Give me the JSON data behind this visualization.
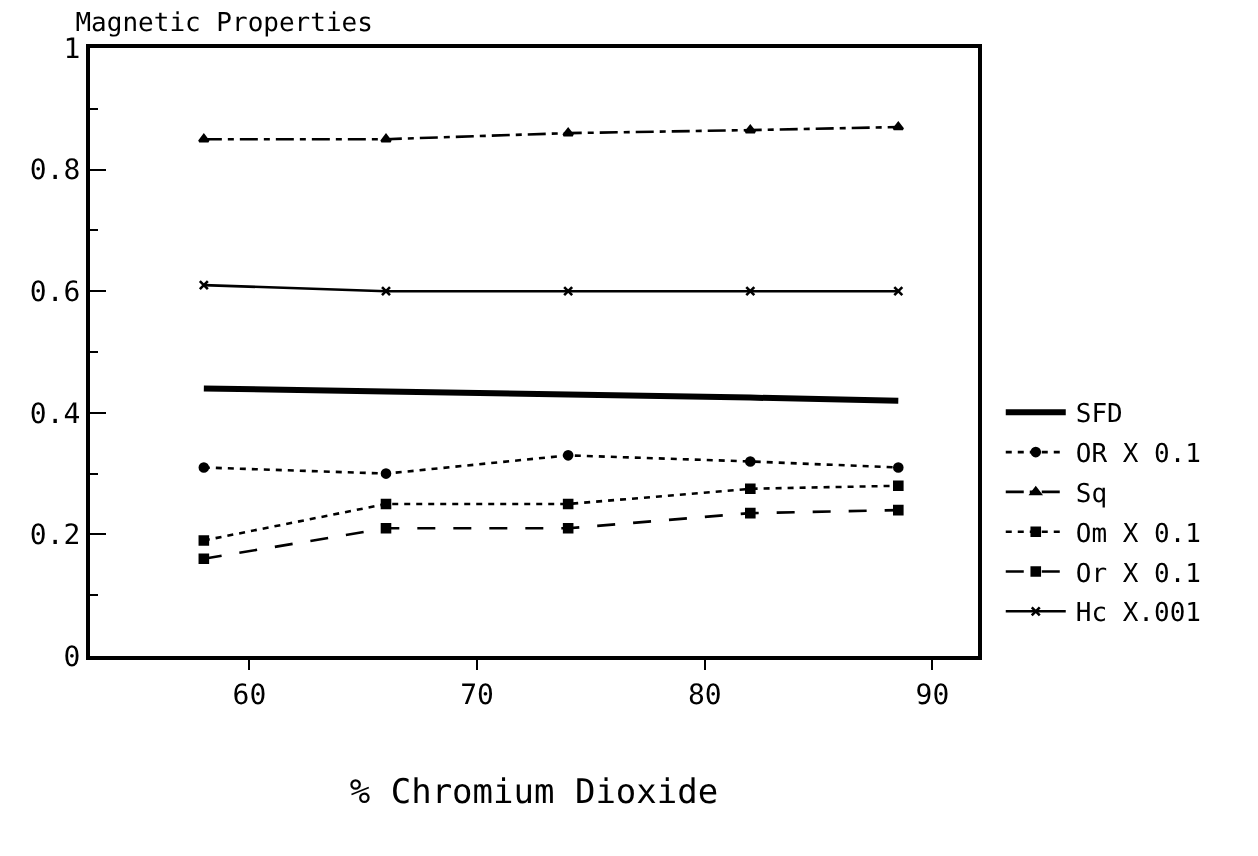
{
  "chart_data": {
    "type": "line",
    "title": "Magnetic Properties",
    "xlabel": "% Chromium Dioxide",
    "x": [
      58,
      66,
      74,
      82,
      88.5
    ],
    "series": [
      {
        "name": "SFD",
        "color": "#000000",
        "values": [
          0.44,
          0.435,
          0.43,
          0.425,
          0.42
        ],
        "line_style": "solid",
        "marker": "none"
      },
      {
        "name": "OR X 0.1",
        "color": "#000000",
        "values": [
          0.31,
          0.3,
          0.33,
          0.32,
          0.31
        ],
        "line_style": "dotted",
        "marker": "circle"
      },
      {
        "name": "Sq",
        "color": "#000000",
        "values": [
          0.85,
          0.85,
          0.86,
          0.865,
          0.87
        ],
        "line_style": "dashdot",
        "marker": "triangle"
      },
      {
        "name": "Om X 0.1",
        "color": "#000000",
        "values": [
          0.19,
          0.25,
          0.25,
          0.275,
          0.28
        ],
        "line_style": "dotted",
        "marker": "square"
      },
      {
        "name": "Or X 0.1",
        "color": "#000000",
        "values": [
          0.16,
          0.21,
          0.21,
          0.235,
          0.24
        ],
        "line_style": "dashed",
        "marker": "square"
      },
      {
        "name": "Hc X.001",
        "color": "#000000",
        "values": [
          0.61,
          0.6,
          0.6,
          0.6,
          0.6
        ],
        "line_style": "solid",
        "marker": "cross"
      }
    ],
    "xlim": [
      53,
      92
    ],
    "xticks": [
      60,
      70,
      80,
      90
    ],
    "ylim": [
      0,
      1
    ],
    "yticks": [
      0,
      0.2,
      0.4,
      0.6,
      0.8,
      1
    ],
    "legend": "right"
  }
}
